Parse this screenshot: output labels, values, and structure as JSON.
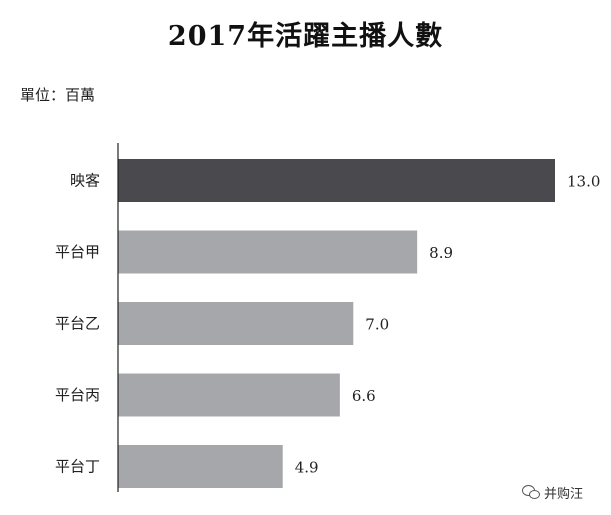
{
  "chart_data": {
    "type": "bar",
    "orientation": "horizontal",
    "title": "2017年活躍主播人數",
    "unit_label": "單位：百萬",
    "categories": [
      "映客",
      "平台甲",
      "平台乙",
      "平台丙",
      "平台丁"
    ],
    "values": [
      13.0,
      8.9,
      7.0,
      6.6,
      4.9
    ],
    "value_labels": [
      "13.0",
      "8.9",
      "7.0",
      "6.6",
      "4.9"
    ],
    "xlim": [
      0,
      13.0
    ],
    "grid": false,
    "legend": "none",
    "colors": {
      "highlight": "#4a4a4e",
      "default": "#a6a7aa",
      "axis": "#222222"
    },
    "highlight_index": 0
  },
  "watermark": {
    "text": "并购汪",
    "icon": "wechat-icon"
  }
}
